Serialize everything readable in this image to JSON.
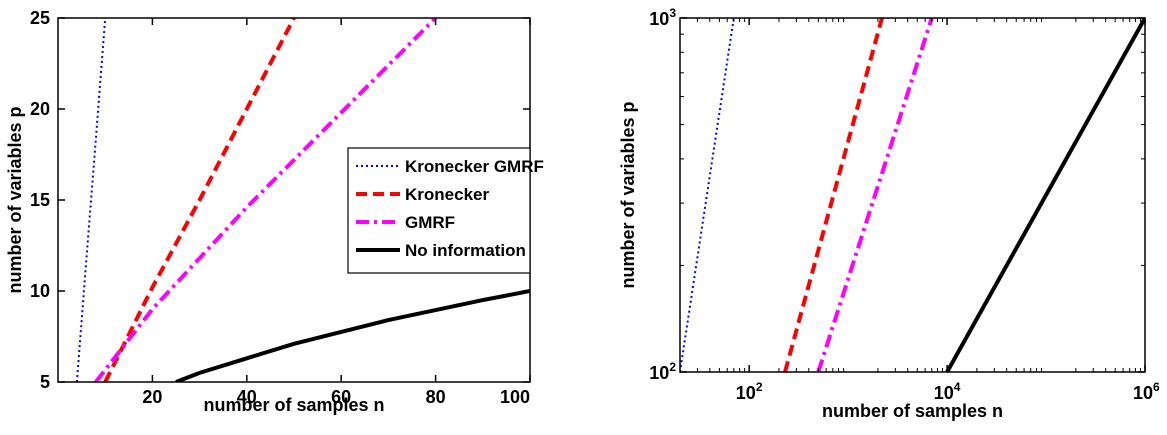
{
  "chart_data": [
    {
      "type": "line",
      "xscale": "linear",
      "yscale": "linear",
      "xlim": [
        0,
        100
      ],
      "ylim": [
        5,
        25
      ],
      "xticks": [
        20,
        40,
        60,
        80,
        100
      ],
      "xtick_labels": [
        "20",
        "40",
        "60",
        "80",
        "100"
      ],
      "yticks": [
        5,
        10,
        15,
        20,
        25
      ],
      "ytick_labels": [
        "5",
        "10",
        "15",
        "20",
        "25"
      ],
      "xlabel": "number of samples n",
      "ylabel": "number of variables p",
      "grid": false,
      "legend": {
        "position": "middle-right",
        "entries": [
          "Kronecker GMRF",
          "Kronecker",
          "GMRF",
          "No information"
        ]
      },
      "series": [
        {
          "name": "Kronecker GMRF",
          "color": "#0000ff",
          "style": "dotted",
          "x": [
            4,
            6,
            8,
            10
          ],
          "y": [
            5,
            11.7,
            18.3,
            25
          ]
        },
        {
          "name": "Kronecker",
          "color": "#ff0000",
          "style": "dashed",
          "x": [
            10,
            20,
            30,
            40,
            50
          ],
          "y": [
            5,
            10.2,
            15,
            20,
            25
          ]
        },
        {
          "name": "GMRF",
          "color": "#ff00ff",
          "style": "dashdot",
          "x": [
            8,
            20,
            40,
            60,
            80
          ],
          "y": [
            5,
            9,
            14.6,
            19.8,
            25
          ]
        },
        {
          "name": "No information",
          "color": "#000000",
          "style": "solid",
          "x": [
            25,
            30,
            40,
            50,
            60,
            70,
            80,
            90,
            100
          ],
          "y": [
            5,
            5.5,
            6.3,
            7.1,
            7.75,
            8.4,
            8.95,
            9.5,
            10
          ]
        }
      ]
    },
    {
      "type": "line",
      "xscale": "log",
      "yscale": "log",
      "xlim": [
        20,
        1000000
      ],
      "ylim": [
        100,
        1000
      ],
      "xticks": [
        100,
        10000,
        1000000
      ],
      "xtick_labels": [
        {
          "base": "10",
          "exp": "2"
        },
        {
          "base": "10",
          "exp": "4"
        },
        {
          "base": "10",
          "exp": "6"
        }
      ],
      "yticks": [
        100,
        1000
      ],
      "ytick_labels": [
        {
          "base": "10",
          "exp": "2"
        },
        {
          "base": "10",
          "exp": "3"
        }
      ],
      "xlabel": "number of samples n",
      "ylabel": "number of variables p",
      "grid": false,
      "series": [
        {
          "name": "Kronecker GMRF",
          "color": "#0000ff",
          "style": "dotted",
          "x": [
            20,
            70
          ],
          "y": [
            100,
            1000
          ]
        },
        {
          "name": "Kronecker",
          "color": "#ff0000",
          "style": "dashed",
          "x": [
            230,
            2200
          ],
          "y": [
            100,
            1000
          ]
        },
        {
          "name": "GMRF",
          "color": "#ff00ff",
          "style": "dashdot",
          "x": [
            500,
            7000
          ],
          "y": [
            100,
            1000
          ]
        },
        {
          "name": "No information",
          "color": "#000000",
          "style": "solid",
          "x": [
            10000,
            1000000
          ],
          "y": [
            100,
            1000
          ]
        }
      ]
    }
  ]
}
